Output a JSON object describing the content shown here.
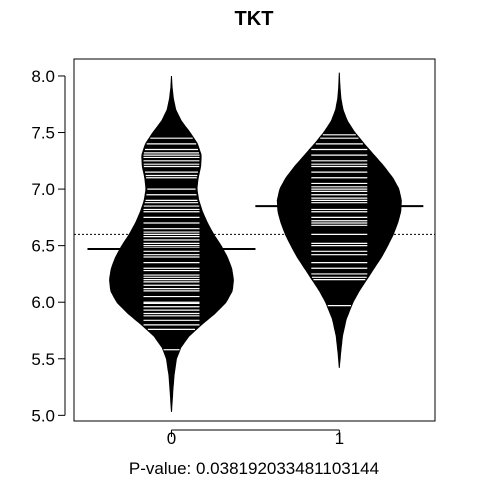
{
  "chart_data": {
    "type": "beanplot",
    "title": "TKT",
    "xlabel": "P-value: 0.0381920334811031​44",
    "ylabel": "",
    "categories": [
      "0",
      "1"
    ],
    "ylim": [
      4.95,
      8.15
    ],
    "yticks": [
      5.0,
      5.5,
      6.0,
      6.5,
      7.0,
      7.5,
      8.0
    ],
    "ytick_labels": [
      "5.0",
      "5.5",
      "6.0",
      "6.5",
      "7.0",
      "7.5",
      "8.0"
    ],
    "overall_mean": 6.6,
    "groups": [
      {
        "category": "0",
        "mean": 6.47,
        "density": [
          [
            5.03,
            0.0
          ],
          [
            5.2,
            0.02
          ],
          [
            5.35,
            0.04
          ],
          [
            5.5,
            0.08
          ],
          [
            5.6,
            0.15
          ],
          [
            5.7,
            0.28
          ],
          [
            5.8,
            0.48
          ],
          [
            5.9,
            0.7
          ],
          [
            6.0,
            0.88
          ],
          [
            6.1,
            0.98
          ],
          [
            6.2,
            1.0
          ],
          [
            6.3,
            0.97
          ],
          [
            6.4,
            0.9
          ],
          [
            6.5,
            0.8
          ],
          [
            6.6,
            0.68
          ],
          [
            6.7,
            0.58
          ],
          [
            6.8,
            0.5
          ],
          [
            6.9,
            0.44
          ],
          [
            7.0,
            0.41
          ],
          [
            7.1,
            0.43
          ],
          [
            7.2,
            0.47
          ],
          [
            7.3,
            0.48
          ],
          [
            7.4,
            0.42
          ],
          [
            7.5,
            0.3
          ],
          [
            7.6,
            0.16
          ],
          [
            7.7,
            0.07
          ],
          [
            7.8,
            0.03
          ],
          [
            7.9,
            0.01
          ],
          [
            8.0,
            0.0
          ]
        ],
        "observations": [
          5.58,
          5.76,
          5.8,
          5.84,
          5.88,
          5.9,
          5.93,
          5.96,
          5.99,
          6.0,
          6.05,
          6.1,
          6.12,
          6.15,
          6.18,
          6.2,
          6.22,
          6.24,
          6.28,
          6.3,
          6.35,
          6.4,
          6.42,
          6.45,
          6.48,
          6.5,
          6.52,
          6.55,
          6.58,
          6.6,
          6.62,
          6.65,
          6.7,
          6.75,
          6.8,
          6.82,
          6.85,
          6.88,
          6.9,
          6.95,
          7.0,
          7.1,
          7.12,
          7.15,
          7.2,
          7.22,
          7.25,
          7.28,
          7.3,
          7.32,
          7.35,
          7.4,
          7.45
        ]
      },
      {
        "category": "1",
        "mean": 6.85,
        "density": [
          [
            5.42,
            0.0
          ],
          [
            5.55,
            0.02
          ],
          [
            5.7,
            0.05
          ],
          [
            5.85,
            0.11
          ],
          [
            6.0,
            0.22
          ],
          [
            6.1,
            0.32
          ],
          [
            6.2,
            0.44
          ],
          [
            6.3,
            0.56
          ],
          [
            6.4,
            0.68
          ],
          [
            6.5,
            0.78
          ],
          [
            6.6,
            0.87
          ],
          [
            6.7,
            0.94
          ],
          [
            6.8,
            0.99
          ],
          [
            6.9,
            1.0
          ],
          [
            7.0,
            0.96
          ],
          [
            7.1,
            0.86
          ],
          [
            7.2,
            0.72
          ],
          [
            7.3,
            0.56
          ],
          [
            7.4,
            0.4
          ],
          [
            7.5,
            0.25
          ],
          [
            7.6,
            0.13
          ],
          [
            7.7,
            0.06
          ],
          [
            7.8,
            0.025
          ],
          [
            7.9,
            0.01
          ],
          [
            8.03,
            0.0
          ]
        ],
        "observations": [
          5.97,
          6.2,
          6.22,
          6.25,
          6.3,
          6.35,
          6.42,
          6.45,
          6.5,
          6.52,
          6.6,
          6.68,
          6.7,
          6.72,
          6.75,
          6.8,
          6.82,
          6.85,
          6.88,
          6.9,
          6.92,
          6.95,
          6.98,
          7.0,
          7.02,
          7.05,
          7.1,
          7.15,
          7.2,
          7.22,
          7.25,
          7.3,
          7.35,
          7.4,
          7.45,
          7.48
        ]
      }
    ],
    "colors": {
      "bean": "#000000",
      "lines": "#ffffff",
      "axis": "#000000",
      "background": "#ffffff"
    },
    "grid": false,
    "legend": "none"
  }
}
